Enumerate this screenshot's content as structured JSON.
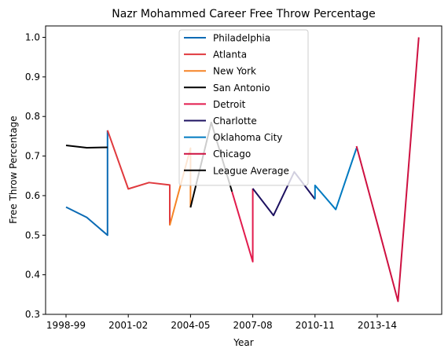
{
  "chart_data": {
    "type": "line",
    "title": "Nazr Mohammed Career Free Throw Percentage",
    "xlabel": "Year",
    "ylabel": "Free Throw Percentage",
    "x_tick_labels": [
      "1998-99",
      "2001-02",
      "2004-05",
      "2007-08",
      "2010-11",
      "2013-14"
    ],
    "x_range": [
      0,
      17
    ],
    "ylim": [
      0.3,
      1.03
    ],
    "y_ticks": [
      0.3,
      0.4,
      0.5,
      0.6,
      0.7,
      0.8,
      0.9,
      1.0
    ],
    "y_tick_labels": [
      "0.3",
      "0.4",
      "0.5",
      "0.6",
      "0.7",
      "0.8",
      "0.9",
      "1.0"
    ],
    "grid": false,
    "legend_position": "upper center",
    "series": [
      {
        "name": "Philadelphia",
        "color": "#0a6ab4",
        "x": [
          0,
          1,
          2,
          2
        ],
        "y": [
          0.571,
          0.545,
          0.5,
          0.765
        ]
      },
      {
        "name": "Atlanta",
        "color": "#e03a3e",
        "x": [
          2,
          3,
          4,
          5,
          5
        ],
        "y": [
          0.765,
          0.617,
          0.633,
          0.627,
          0.525
        ]
      },
      {
        "name": "New York",
        "color": "#f58426",
        "x": [
          5,
          6,
          6
        ],
        "y": [
          0.525,
          0.72,
          0.57
        ]
      },
      {
        "name": "San Antonio",
        "color": "#000000",
        "x": [
          6,
          7,
          8
        ],
        "y": [
          0.57,
          0.785,
          0.61
        ]
      },
      {
        "name": "Detroit",
        "color": "#e21b4d",
        "x": [
          8,
          9,
          9
        ],
        "y": [
          0.61,
          0.433,
          0.618
        ]
      },
      {
        "name": "Charlotte",
        "color": "#1d1160",
        "x": [
          9,
          10,
          11,
          12
        ],
        "y": [
          0.618,
          0.55,
          0.66,
          0.591
        ]
      },
      {
        "name": "Oklahoma City",
        "color": "#007ac1",
        "x": [
          12,
          12,
          13,
          14
        ],
        "y": [
          0.591,
          0.626,
          0.565,
          0.72
        ]
      },
      {
        "name": "Chicago",
        "color": "#ce1141",
        "x": [
          14,
          15,
          16,
          17
        ],
        "y": [
          0.725,
          0.53,
          0.333,
          1.0
        ]
      },
      {
        "name": "League Average",
        "color": "#000000",
        "x": [
          0,
          1,
          2
        ],
        "y": [
          0.727,
          0.721,
          0.722
        ]
      }
    ]
  }
}
